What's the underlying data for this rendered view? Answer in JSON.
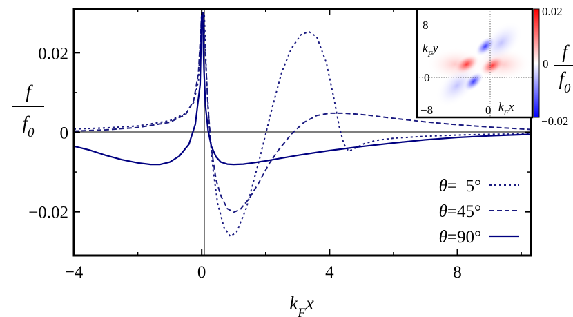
{
  "chart_data": [
    {
      "type": "line",
      "xlabel": "k_F x",
      "ylabel": "f / f_0",
      "xlim": [
        -4,
        10.3
      ],
      "ylim": [
        -0.031,
        0.031
      ],
      "xticks": [
        -4,
        0,
        4,
        8
      ],
      "xtick_labels": [
        "−4",
        "0",
        "4",
        "8"
      ],
      "yticks": [
        -0.02,
        0,
        0.02
      ],
      "ytick_labels": [
        "−0.02",
        "0",
        "0.02"
      ],
      "grid": false,
      "zero_lines": true,
      "legend_position": "bottom-right",
      "series": [
        {
          "name": "θ=  5°",
          "style": "dotted",
          "color": "#1a1a80",
          "x": [
            -4,
            -3,
            -2,
            -1,
            -0.5,
            -0.25,
            -0.1,
            0.0,
            0.08,
            0.15,
            0.25,
            0.35,
            0.5,
            0.7,
            0.9,
            1.1,
            1.4,
            1.8,
            2.2,
            2.5,
            2.8,
            3.1,
            3.35,
            3.6,
            3.9,
            4.15,
            4.3,
            4.45,
            4.6,
            4.8,
            5.1,
            5.5,
            6.0,
            7.0,
            8.0,
            9.0,
            10.3
          ],
          "y": [
            0.0008,
            0.0011,
            0.0016,
            0.0029,
            0.0047,
            0.0075,
            0.013,
            0.03,
            0.03,
            0.014,
            0.0,
            -0.009,
            -0.018,
            -0.024,
            -0.0262,
            -0.025,
            -0.019,
            -0.007,
            0.006,
            0.015,
            0.021,
            0.0245,
            0.0253,
            0.024,
            0.0175,
            0.008,
            0.0015,
            -0.003,
            -0.0048,
            -0.004,
            -0.0028,
            -0.002,
            -0.0015,
            -0.001,
            -0.0007,
            -0.0005,
            -0.0004
          ]
        },
        {
          "name": "θ=45°",
          "style": "dashed",
          "color": "#1a1a80",
          "x": [
            -4,
            -3,
            -2,
            -1,
            -0.5,
            -0.25,
            -0.1,
            0.0,
            0.05,
            0.1,
            0.2,
            0.3,
            0.45,
            0.6,
            0.8,
            1.0,
            1.2,
            1.5,
            1.8,
            2.1,
            2.4,
            2.8,
            3.2,
            3.6,
            4.0,
            4.4,
            4.8,
            5.2,
            5.6,
            6.0,
            7.0,
            8.0,
            9.0,
            10.3
          ],
          "y": [
            0.0003,
            0.0006,
            0.0012,
            0.0025,
            0.0045,
            0.008,
            0.015,
            0.03,
            0.03,
            0.022,
            0.006,
            -0.004,
            -0.012,
            -0.016,
            -0.0192,
            -0.0201,
            -0.0195,
            -0.0165,
            -0.0125,
            -0.008,
            -0.0045,
            -0.0005,
            0.0025,
            0.0042,
            0.0048,
            0.0048,
            0.0046,
            0.0043,
            0.0039,
            0.0035,
            0.0026,
            0.0019,
            0.0013,
            0.0007
          ]
        },
        {
          "name": "θ=90°",
          "style": "solid",
          "color": "#000080",
          "x": [
            -4,
            -3.5,
            -3,
            -2.5,
            -2,
            -1.6,
            -1.3,
            -1.0,
            -0.7,
            -0.4,
            -0.2,
            -0.05,
            0.0,
            0.03,
            0.07,
            0.12,
            0.2,
            0.3,
            0.45,
            0.6,
            0.8,
            1.0,
            1.3,
            1.6,
            2.0,
            2.5,
            3.0,
            3.5,
            4.0,
            5.0,
            6.0,
            7.0,
            8.0,
            9.0,
            10.3
          ],
          "y": [
            -0.0035,
            -0.0045,
            -0.0058,
            -0.0069,
            -0.0077,
            -0.0081,
            -0.0081,
            -0.0075,
            -0.006,
            -0.003,
            0.002,
            0.012,
            0.03,
            0.03,
            0.016,
            0.0065,
            0.0005,
            -0.0035,
            -0.0062,
            -0.0075,
            -0.008,
            -0.0081,
            -0.008,
            -0.0077,
            -0.0072,
            -0.0065,
            -0.0058,
            -0.0052,
            -0.0046,
            -0.0036,
            -0.0027,
            -0.0019,
            -0.0013,
            -0.0009,
            -0.0005
          ]
        }
      ]
    },
    {
      "type": "heatmap",
      "xlabel": "k_F x",
      "ylabel": "k_F y",
      "xlim": [
        -10,
        10
      ],
      "ylim": [
        -10,
        10
      ],
      "xtick_labels": [
        "−8",
        "0"
      ],
      "ytick_labels": [
        "8",
        "0",
        "−8"
      ],
      "colorbar": {
        "min": -0.02,
        "max": 0.02,
        "min_label": "−0.02",
        "max_label": "0.02",
        "mid_label": "0",
        "label": "f / f_0",
        "low_color": "#0000ff",
        "mid_color": "#ffffff",
        "high_color": "#ff0000"
      }
    }
  ]
}
